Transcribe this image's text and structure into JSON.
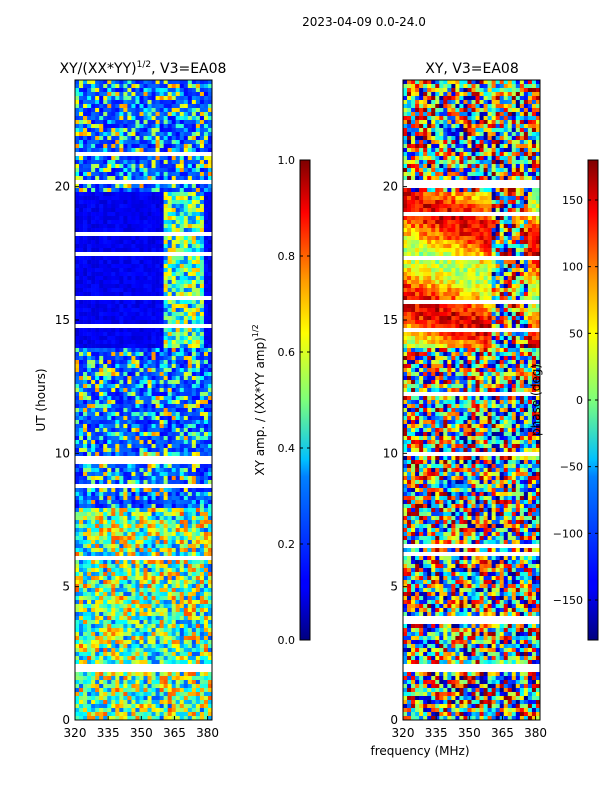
{
  "header": {
    "date_range": "2023-04-09 0.0-24.0"
  },
  "xlabel": "frequency (MHz)",
  "chart_data": [
    {
      "type": "heatmap",
      "title": "XY/(XX*YY)",
      "title_sup": "1/2",
      "title_suffix": ", V3=EA08",
      "xlabel": "frequency (MHz)",
      "ylabel": "UT (hours)",
      "xlim": [
        320,
        382
      ],
      "ylim": [
        0,
        24
      ],
      "xticks": [
        "320",
        "335",
        "350",
        "365",
        "380"
      ],
      "xtick_values": [
        320,
        335,
        350,
        365,
        380
      ],
      "yticks": [
        "0",
        "5",
        "10",
        "15",
        "20"
      ],
      "ytick_values": [
        0,
        5,
        10,
        15,
        20
      ],
      "colorbar": {
        "label": "XY amp. / (XX*YY amp)",
        "label_sup": "1/2",
        "range": [
          0.0,
          1.0
        ],
        "ticks": [
          "0.0",
          "0.2",
          "0.4",
          "0.6",
          "0.8",
          "1.0"
        ],
        "tick_values": [
          0.0,
          0.2,
          0.4,
          0.6,
          0.8,
          1.0
        ],
        "colormap": "jet"
      }
    },
    {
      "type": "heatmap",
      "title": "XY, V3=EA08",
      "xlabel": "frequency (MHz)",
      "ylabel": "",
      "xlim": [
        320,
        382
      ],
      "ylim": [
        0,
        24
      ],
      "xticks": [
        "320",
        "335",
        "350",
        "365",
        "380"
      ],
      "xtick_values": [
        320,
        335,
        350,
        365,
        380
      ],
      "yticks": [
        "0",
        "5",
        "10",
        "15",
        "20"
      ],
      "ytick_values": [
        0,
        5,
        10,
        15,
        20
      ],
      "colorbar": {
        "label": "phase (deg)",
        "range": [
          -180,
          180
        ],
        "ticks": [
          "−150",
          "−100",
          "−50",
          "0",
          "50",
          "100",
          "150"
        ],
        "tick_values": [
          -150,
          -100,
          -50,
          0,
          50,
          100,
          150
        ],
        "colormap": "jet"
      }
    }
  ]
}
